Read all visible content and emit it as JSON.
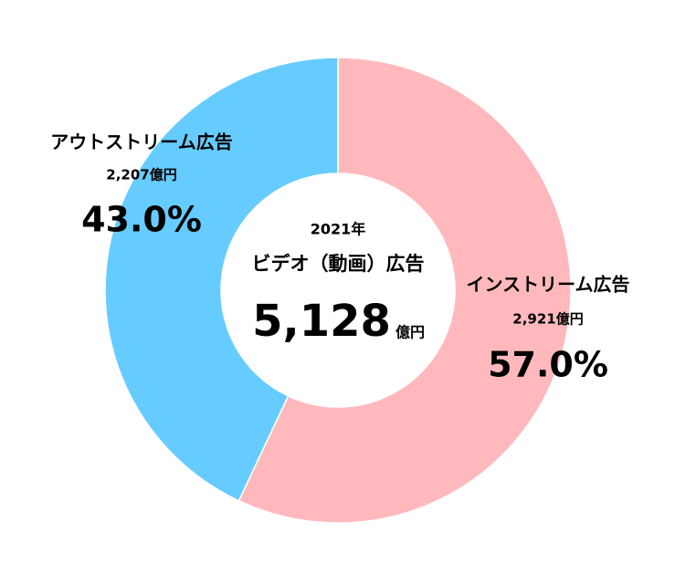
{
  "chart_data": {
    "type": "donut",
    "center_year": "2021年",
    "center_title": "ビデオ（動画）広告",
    "total": 5128,
    "total_label": "5,128",
    "total_unit": "億円",
    "categories": [
      "インストリーム広告",
      "アウトストリーム広告"
    ],
    "values": [
      57.0,
      43.0
    ],
    "value_labels": [
      "57.0%",
      "43.0%"
    ],
    "amounts": [
      2921,
      2207
    ],
    "amount_labels": [
      "2,921億円",
      "2,207億円"
    ],
    "colors": [
      "#ffb9bd",
      "#66ccff"
    ]
  }
}
